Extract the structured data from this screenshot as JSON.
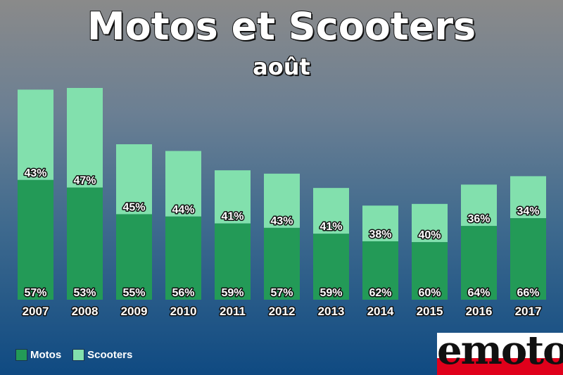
{
  "header": {
    "title": "Motos et Scooters",
    "subtitle": "août"
  },
  "colors": {
    "motos": "#239a57",
    "scooters": "#82e0ad",
    "label_stroke": "#111111"
  },
  "logo": {
    "text": "emoto"
  },
  "legend": [
    {
      "label": "Motos",
      "color": "#239a57"
    },
    {
      "label": "Scooters",
      "color": "#82e0ad"
    }
  ],
  "chart_data": {
    "type": "bar",
    "stacked": true,
    "categories": [
      "2007",
      "2008",
      "2009",
      "2010",
      "2011",
      "2012",
      "2013",
      "2014",
      "2015",
      "2016",
      "2017"
    ],
    "totals": [
      100,
      100.8,
      74,
      70.8,
      61.6,
      60,
      53.2,
      44.8,
      45.6,
      54.8,
      58.8
    ],
    "series": [
      {
        "name": "Motos",
        "percent_labels": [
          "57%",
          "53%",
          "55%",
          "56%",
          "59%",
          "57%",
          "59%",
          "62%",
          "60%",
          "64%",
          "66%"
        ],
        "values": [
          57,
          53.4,
          40.7,
          39.6,
          36.3,
          34.2,
          31.4,
          27.8,
          27.4,
          35.1,
          38.8
        ]
      },
      {
        "name": "Scooters",
        "percent_labels": [
          "43%",
          "47%",
          "45%",
          "44%",
          "41%",
          "43%",
          "41%",
          "38%",
          "40%",
          "36%",
          "34%"
        ],
        "values": [
          43,
          47.4,
          33.3,
          31.2,
          25.3,
          25.8,
          21.8,
          17,
          18.2,
          19.7,
          20
        ]
      }
    ],
    "title": "Motos et Scooters",
    "subtitle": "août",
    "ylim": [
      0,
      100.8
    ],
    "grid": false,
    "legend_position": "bottom-left"
  }
}
